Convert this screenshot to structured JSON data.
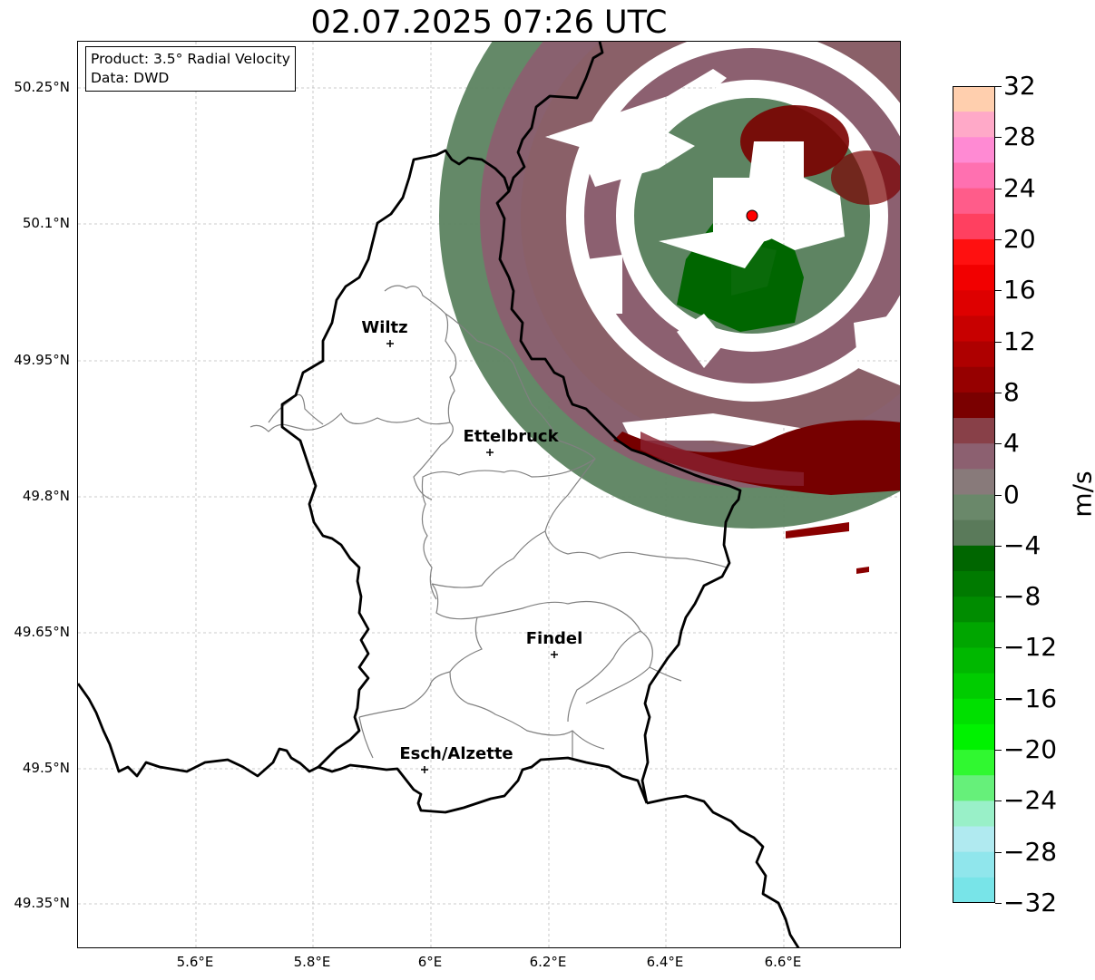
{
  "title": "02.07.2025 07:26 UTC",
  "info": {
    "product": "Product: 3.5° Radial Velocity",
    "source": "Data: DWD"
  },
  "axes": {
    "lat_labels": [
      "50.25°N",
      "50.1°N",
      "49.95°N",
      "49.8°N",
      "49.65°N",
      "49.5°N",
      "49.35°N"
    ],
    "lon_labels": [
      "5.6°E",
      "5.8°E",
      "6°E",
      "6.2°E",
      "6.4°E",
      "6.6°E"
    ],
    "lat_range": [
      49.3,
      50.3
    ],
    "lon_range": [
      5.4,
      6.8
    ]
  },
  "cities": [
    {
      "name": "Wiltz",
      "lat": 49.968,
      "lon": 5.932
    },
    {
      "name": "Ettelbruck",
      "lat": 49.848,
      "lon": 6.101
    },
    {
      "name": "Findel",
      "lat": 49.625,
      "lon": 6.21
    },
    {
      "name": "Esch/Alzette",
      "lat": 49.497,
      "lon": 5.99
    }
  ],
  "radar_site": {
    "lat": 50.11,
    "lon": 6.548,
    "color": "#ff0000"
  },
  "colorbar": {
    "unit": "m/s",
    "range": [
      -32,
      32
    ],
    "ticks": [
      "32",
      "28",
      "24",
      "20",
      "16",
      "12",
      "8",
      "4",
      "0",
      "−4",
      "−8",
      "−12",
      "−16",
      "−20",
      "−24",
      "−28",
      "−32"
    ],
    "colors_top_to_bottom": [
      "#ffcfae",
      "#ffa9c8",
      "#ff8ad3",
      "#ff70b0",
      "#ff5c8a",
      "#ff4060",
      "#ff1010",
      "#f20000",
      "#de0000",
      "#c80000",
      "#ae0000",
      "#960000",
      "#7a0000",
      "#884048",
      "#8c6070",
      "#887a7a",
      "#6a886a",
      "#5a7a5a",
      "#006600",
      "#007a00",
      "#008c00",
      "#00a600",
      "#00b800",
      "#00cc00",
      "#00e000",
      "#00f200",
      "#30f830",
      "#66f07a",
      "#99f0c8",
      "#b0eaf0",
      "#90e6ec",
      "#78e4e8"
    ]
  },
  "palette": {
    "inbound_dark_green": "#006600",
    "inbound_green": "#5e8462",
    "outbound_mauve": "#8c6070",
    "outbound_dark_red": "#760000"
  }
}
